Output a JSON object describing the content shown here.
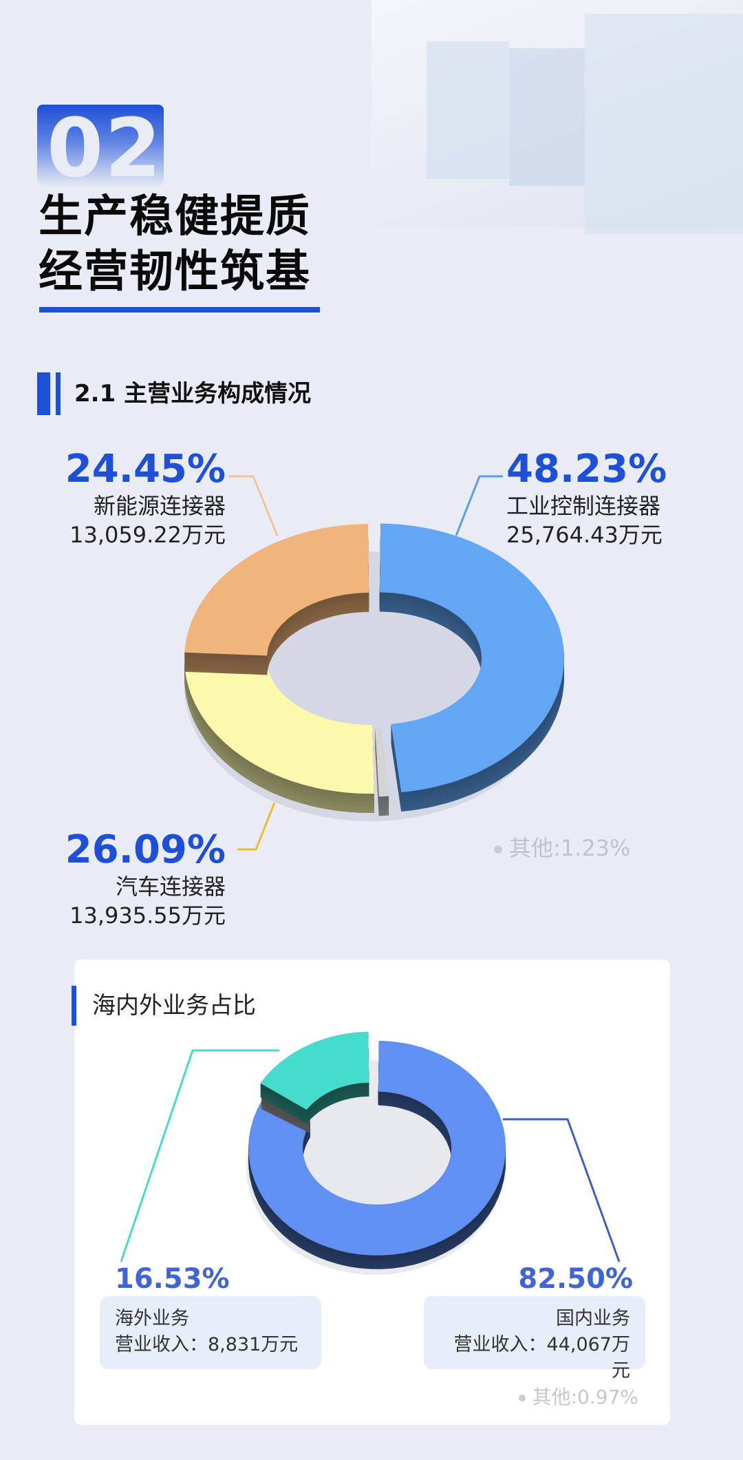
{
  "header": {
    "section_number": "02",
    "title_line1": "生产稳健提质",
    "title_line2": "经营韧性筑基"
  },
  "section": {
    "title": "2.1 主营业务构成情况"
  },
  "card": {
    "title": "海内外业务占比"
  },
  "colors": {
    "accent": "#1e4fd8",
    "background": "#e9ecf5"
  },
  "chart_data": [
    {
      "type": "pie",
      "style": "3d-donut",
      "title": "",
      "slices": [
        {
          "name": "工业控制连接器",
          "percent": "48.23%",
          "value_text": "25,764.43万元",
          "value": 48.23,
          "color": "#62a6f4"
        },
        {
          "name": "其他",
          "percent": "1.23%",
          "label": "其他:1.23%",
          "value": 1.23,
          "color": "#d4d4d4"
        },
        {
          "name": "汽车连接器",
          "percent": "26.09%",
          "value_text": "13,935.55万元",
          "value": 26.09,
          "color": "#fdf9ac"
        },
        {
          "name": "新能源连接器",
          "percent": "24.45%",
          "value_text": "13,059.22万元",
          "value": 24.45,
          "color": "#f1b47a"
        }
      ]
    },
    {
      "type": "pie",
      "style": "3d-donut",
      "title": "海内外业务占比",
      "slices": [
        {
          "name": "国内业务",
          "percent": "82.50%",
          "value_text": "营业收入：44,067万元",
          "value": 82.5,
          "color": "#5f90f2"
        },
        {
          "name": "其他",
          "percent": "0.97%",
          "label": "其他:0.97%",
          "value": 0.97,
          "color": "#d4d4d4"
        },
        {
          "name": "海外业务",
          "percent": "16.53%",
          "value_text": "营业收入：8,831万元",
          "value": 16.53,
          "color": "#45dccd"
        }
      ]
    }
  ]
}
